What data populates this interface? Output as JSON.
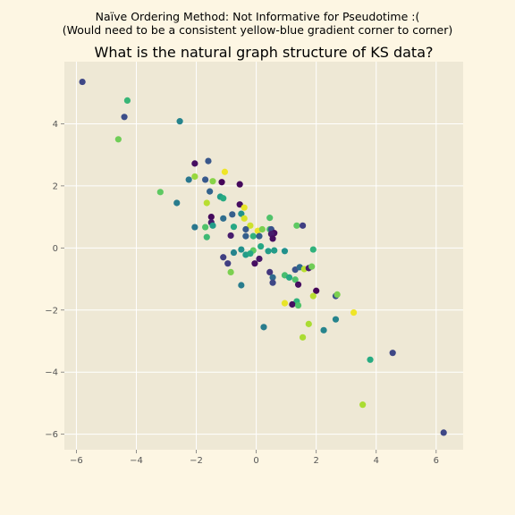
{
  "figure": {
    "suptitle_line1": "Naïve Ordering Method: Not Informative for Pseudotime :(",
    "suptitle_line2": "(Would need to be a consistent yellow-blue gradient corner to corner)",
    "background_color": "#fdf6e3",
    "axes_color": "#eee8d5",
    "grid_color": "#ffffff"
  },
  "chart_data": {
    "type": "scatter",
    "title": "What is the natural graph structure of KS data?",
    "xlabel": "",
    "ylabel": "",
    "xlim": [
      -6.4,
      6.9
    ],
    "ylim": [
      -6.5,
      6.0
    ],
    "xticks": [
      -6,
      -4,
      -2,
      0,
      2,
      4,
      6
    ],
    "yticks": [
      -6,
      -4,
      -2,
      0,
      2,
      4
    ],
    "grid": true,
    "colormap": "viridis",
    "points": [
      {
        "x": -5.8,
        "y": 5.35,
        "c": 0.22
      },
      {
        "x": -4.3,
        "y": 4.75,
        "c": 0.67
      },
      {
        "x": -4.4,
        "y": 4.22,
        "c": 0.24
      },
      {
        "x": -2.55,
        "y": 4.08,
        "c": 0.45
      },
      {
        "x": -4.6,
        "y": 3.5,
        "c": 0.78
      },
      {
        "x": -2.05,
        "y": 2.72,
        "c": 0.05
      },
      {
        "x": -1.6,
        "y": 2.8,
        "c": 0.27
      },
      {
        "x": -1.05,
        "y": 2.45,
        "c": 0.98
      },
      {
        "x": -2.05,
        "y": 2.3,
        "c": 0.85
      },
      {
        "x": -2.25,
        "y": 2.2,
        "c": 0.4
      },
      {
        "x": -1.7,
        "y": 2.2,
        "c": 0.28
      },
      {
        "x": -1.45,
        "y": 2.15,
        "c": 0.82
      },
      {
        "x": -1.15,
        "y": 2.12,
        "c": 0.02
      },
      {
        "x": -0.55,
        "y": 2.05,
        "c": 0.03
      },
      {
        "x": -3.2,
        "y": 1.8,
        "c": 0.75
      },
      {
        "x": -1.55,
        "y": 1.82,
        "c": 0.32
      },
      {
        "x": -1.2,
        "y": 1.65,
        "c": 0.55
      },
      {
        "x": -1.1,
        "y": 1.6,
        "c": 0.62
      },
      {
        "x": -2.65,
        "y": 1.45,
        "c": 0.42
      },
      {
        "x": -1.65,
        "y": 1.45,
        "c": 0.9
      },
      {
        "x": -0.55,
        "y": 1.4,
        "c": 0.05
      },
      {
        "x": -0.4,
        "y": 1.3,
        "c": 0.97
      },
      {
        "x": -0.8,
        "y": 1.08,
        "c": 0.3
      },
      {
        "x": -0.5,
        "y": 1.1,
        "c": 0.5
      },
      {
        "x": -1.5,
        "y": 1.0,
        "c": 0.03
      },
      {
        "x": -1.1,
        "y": 0.95,
        "c": 0.36
      },
      {
        "x": -0.4,
        "y": 0.95,
        "c": 0.95
      },
      {
        "x": 0.45,
        "y": 0.97,
        "c": 0.72
      },
      {
        "x": -1.5,
        "y": 0.82,
        "c": 0.1
      },
      {
        "x": -1.45,
        "y": 0.72,
        "c": 0.55
      },
      {
        "x": -1.7,
        "y": 0.67,
        "c": 0.72
      },
      {
        "x": -2.05,
        "y": 0.67,
        "c": 0.4
      },
      {
        "x": -0.75,
        "y": 0.68,
        "c": 0.6
      },
      {
        "x": -0.2,
        "y": 0.72,
        "c": 0.93
      },
      {
        "x": 1.35,
        "y": 0.72,
        "c": 0.75
      },
      {
        "x": 1.55,
        "y": 0.72,
        "c": 0.2
      },
      {
        "x": -0.35,
        "y": 0.6,
        "c": 0.28
      },
      {
        "x": 0.05,
        "y": 0.55,
        "c": 0.97
      },
      {
        "x": 0.2,
        "y": 0.6,
        "c": 0.8
      },
      {
        "x": 0.45,
        "y": 0.6,
        "c": 0.7
      },
      {
        "x": 0.5,
        "y": 0.6,
        "c": 0.25
      },
      {
        "x": 0.6,
        "y": 0.48,
        "c": 0.05
      },
      {
        "x": 0.5,
        "y": 0.45,
        "c": 0.1
      },
      {
        "x": -0.85,
        "y": 0.4,
        "c": 0.1
      },
      {
        "x": -0.35,
        "y": 0.38,
        "c": 0.3
      },
      {
        "x": -0.1,
        "y": 0.38,
        "c": 0.65
      },
      {
        "x": 0.1,
        "y": 0.38,
        "c": 0.3
      },
      {
        "x": 0.55,
        "y": 0.3,
        "c": 0.05
      },
      {
        "x": -1.65,
        "y": 0.35,
        "c": 0.68
      },
      {
        "x": 0.15,
        "y": 0.05,
        "c": 0.6
      },
      {
        "x": -0.5,
        "y": -0.05,
        "c": 0.5
      },
      {
        "x": -0.1,
        "y": -0.08,
        "c": 0.75
      },
      {
        "x": 0.4,
        "y": -0.1,
        "c": 0.55
      },
      {
        "x": 0.6,
        "y": -0.08,
        "c": 0.55
      },
      {
        "x": 0.95,
        "y": -0.1,
        "c": 0.5
      },
      {
        "x": 1.9,
        "y": -0.05,
        "c": 0.65
      },
      {
        "x": -0.75,
        "y": -0.15,
        "c": 0.45
      },
      {
        "x": -0.35,
        "y": -0.22,
        "c": 0.55
      },
      {
        "x": -0.2,
        "y": -0.18,
        "c": 0.6
      },
      {
        "x": -1.1,
        "y": -0.3,
        "c": 0.2
      },
      {
        "x": 0.1,
        "y": -0.35,
        "c": 0.08
      },
      {
        "x": -0.05,
        "y": -0.5,
        "c": 0.05
      },
      {
        "x": -0.95,
        "y": -0.5,
        "c": 0.2
      },
      {
        "x": -0.85,
        "y": -0.78,
        "c": 0.8
      },
      {
        "x": 0.45,
        "y": -0.78,
        "c": 0.18
      },
      {
        "x": 1.3,
        "y": -0.7,
        "c": 0.25
      },
      {
        "x": 1.45,
        "y": -0.62,
        "c": 0.35
      },
      {
        "x": 1.6,
        "y": -0.68,
        "c": 0.9
      },
      {
        "x": 1.75,
        "y": -0.65,
        "c": 0.1
      },
      {
        "x": 1.85,
        "y": -0.6,
        "c": 0.78
      },
      {
        "x": 0.95,
        "y": -0.88,
        "c": 0.7
      },
      {
        "x": 1.1,
        "y": -0.95,
        "c": 0.6
      },
      {
        "x": 0.55,
        "y": -0.95,
        "c": 0.35
      },
      {
        "x": 1.3,
        "y": -1.02,
        "c": 0.72
      },
      {
        "x": 0.55,
        "y": -1.12,
        "c": 0.22
      },
      {
        "x": 1.4,
        "y": -1.18,
        "c": 0.05
      },
      {
        "x": -0.5,
        "y": -1.2,
        "c": 0.42
      },
      {
        "x": 2.0,
        "y": -1.38,
        "c": 0.02
      },
      {
        "x": 2.65,
        "y": -1.55,
        "c": 0.25
      },
      {
        "x": 2.7,
        "y": -1.5,
        "c": 0.8
      },
      {
        "x": 1.9,
        "y": -1.55,
        "c": 0.9
      },
      {
        "x": 1.35,
        "y": -1.72,
        "c": 0.65
      },
      {
        "x": 0.95,
        "y": -1.78,
        "c": 0.97
      },
      {
        "x": 1.2,
        "y": -1.82,
        "c": 0.05
      },
      {
        "x": 1.4,
        "y": -1.85,
        "c": 0.72
      },
      {
        "x": 3.25,
        "y": -2.08,
        "c": 0.98
      },
      {
        "x": 2.65,
        "y": -2.3,
        "c": 0.45
      },
      {
        "x": 1.75,
        "y": -2.45,
        "c": 0.88
      },
      {
        "x": 0.25,
        "y": -2.55,
        "c": 0.42
      },
      {
        "x": 2.25,
        "y": -2.65,
        "c": 0.45
      },
      {
        "x": 1.55,
        "y": -2.88,
        "c": 0.88
      },
      {
        "x": 4.55,
        "y": -3.38,
        "c": 0.22
      },
      {
        "x": 3.8,
        "y": -3.6,
        "c": 0.62
      },
      {
        "x": 3.55,
        "y": -5.05,
        "c": 0.88
      },
      {
        "x": 6.25,
        "y": -5.95,
        "c": 0.22
      }
    ]
  }
}
